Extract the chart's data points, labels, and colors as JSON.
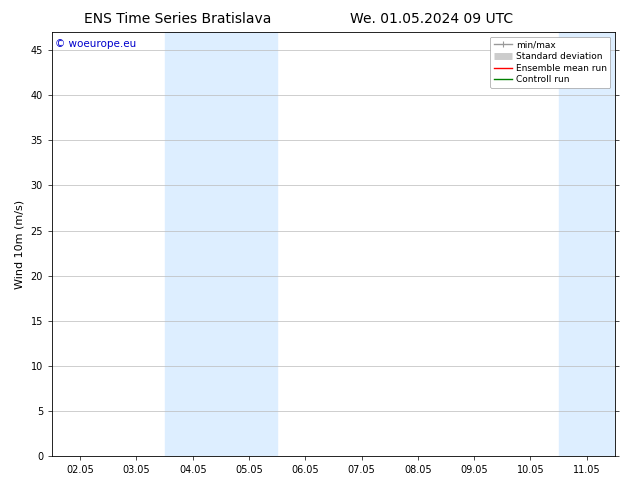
{
  "title_left": "ENS Time Series Bratislava",
  "title_right": "We. 01.05.2024 09 UTC",
  "ylabel": "Wind 10m (m/s)",
  "watermark": "© woeurope.eu",
  "xtick_labels": [
    "02.05",
    "03.05",
    "04.05",
    "05.05",
    "06.05",
    "07.05",
    "08.05",
    "09.05",
    "10.05",
    "11.05"
  ],
  "ytick_values": [
    0,
    5,
    10,
    15,
    20,
    25,
    30,
    35,
    40,
    45
  ],
  "ylim": [
    0,
    47
  ],
  "xlim_start": -0.5,
  "xlim_end": 9.5,
  "shaded_bands": [
    {
      "x_start": 1.5,
      "x_end": 3.5
    },
    {
      "x_start": 8.5,
      "x_end": 9.5
    }
  ],
  "shaded_color": "#ddeeff",
  "legend_items": [
    {
      "label": "min/max",
      "color": "#999999",
      "lw": 1.0
    },
    {
      "label": "Standard deviation",
      "color": "#cccccc",
      "lw": 5
    },
    {
      "label": "Ensemble mean run",
      "color": "#ff0000",
      "lw": 1.0
    },
    {
      "label": "Controll run",
      "color": "#008000",
      "lw": 1.0
    }
  ],
  "background_color": "#ffffff",
  "plot_bg_color": "#ffffff",
  "grid_color": "#bbbbbb",
  "border_color": "#000000",
  "title_fontsize": 10,
  "tick_fontsize": 7,
  "label_fontsize": 8,
  "watermark_color": "#0000cc",
  "watermark_fontsize": 7.5
}
